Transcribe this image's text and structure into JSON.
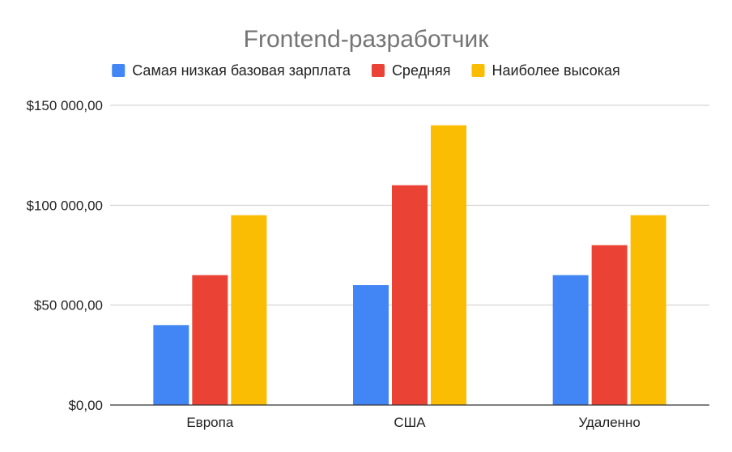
{
  "chart_data": {
    "type": "bar",
    "title": "Frontend-разработчик",
    "xlabel": "",
    "ylabel": "",
    "categories": [
      "Европа",
      "США",
      "Удаленно"
    ],
    "series": [
      {
        "name": "Самая низкая базовая зарплата",
        "color": "#4285F4",
        "values": [
          40000,
          60000,
          65000
        ]
      },
      {
        "name": "Средняя",
        "color": "#EA4335",
        "values": [
          65000,
          110000,
          80000
        ]
      },
      {
        "name": "Наиболее высокая",
        "color": "#FBBC04",
        "values": [
          95000,
          140000,
          95000
        ]
      }
    ],
    "ylim": [
      0,
      150000
    ],
    "yticks": [
      {
        "value": 0,
        "label": "$0,00"
      },
      {
        "value": 50000,
        "label": "$50 000,00"
      },
      {
        "value": 100000,
        "label": "$100 000,00"
      },
      {
        "value": 150000,
        "label": "$150 000,00"
      }
    ],
    "grid": true,
    "legend_position": "top"
  }
}
